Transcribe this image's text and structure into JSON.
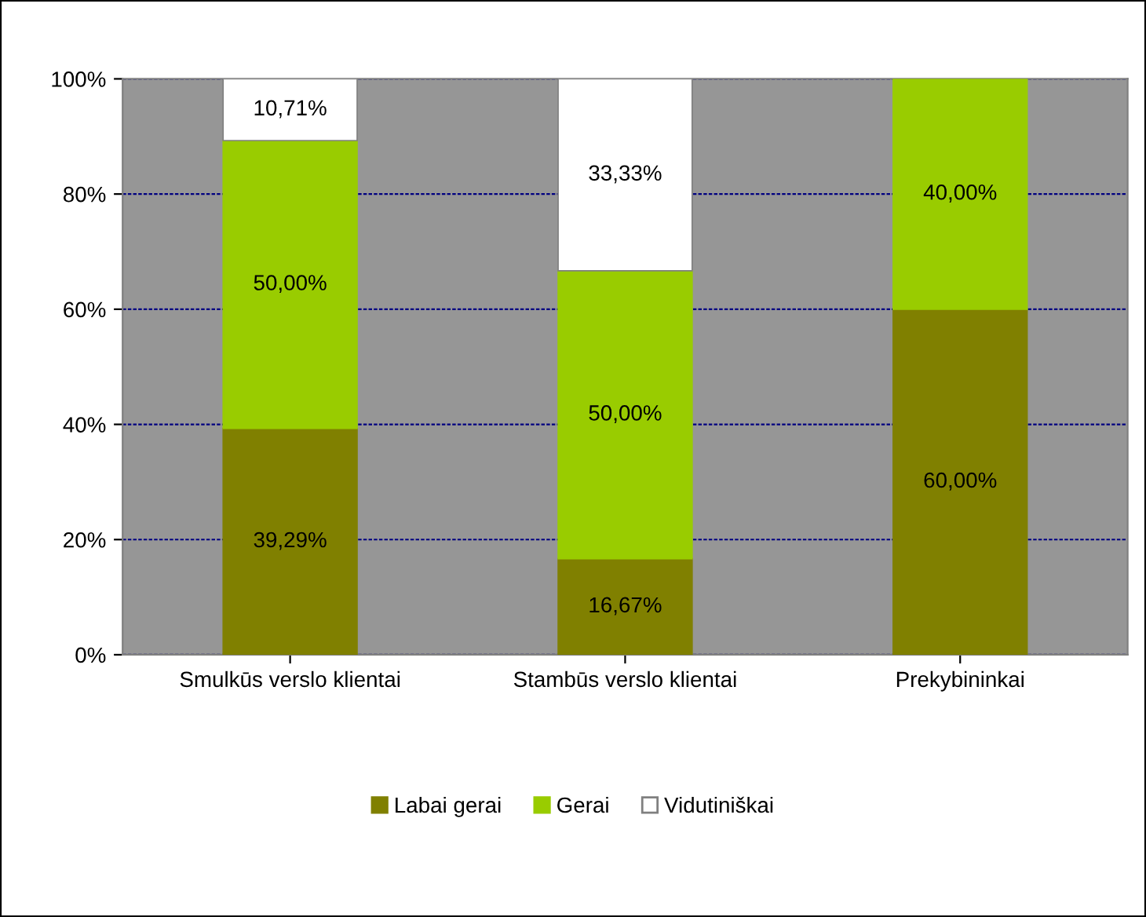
{
  "chart_data": {
    "type": "bar",
    "stacked": true,
    "categories": [
      "Smulkūs verslo klientai",
      "Stambūs verslo klientai",
      "Prekybininkai"
    ],
    "series": [
      {
        "name": "Labai gerai",
        "color": "#808000",
        "values": [
          39.29,
          16.67,
          60.0
        ],
        "value_labels": [
          "39,29%",
          "16,67%",
          "60,00%"
        ]
      },
      {
        "name": "Gerai",
        "color": "#99cc00",
        "values": [
          50.0,
          50.0,
          40.0
        ],
        "value_labels": [
          "50,00%",
          "50,00%",
          "40,00%"
        ]
      },
      {
        "name": "Vidutiniškai",
        "color": "#ffffff",
        "values": [
          10.71,
          33.33,
          null
        ],
        "value_labels": [
          "10,71%",
          "33,33%",
          null
        ]
      }
    ],
    "ylim": [
      0,
      100
    ],
    "yticks": [
      {
        "value": 0,
        "label": "0%"
      },
      {
        "value": 20,
        "label": "20%"
      },
      {
        "value": 40,
        "label": "40%"
      },
      {
        "value": 60,
        "label": "60%"
      },
      {
        "value": 80,
        "label": "80%"
      },
      {
        "value": 100,
        "label": "100%"
      }
    ],
    "grid": "y",
    "legend": "bottom"
  }
}
